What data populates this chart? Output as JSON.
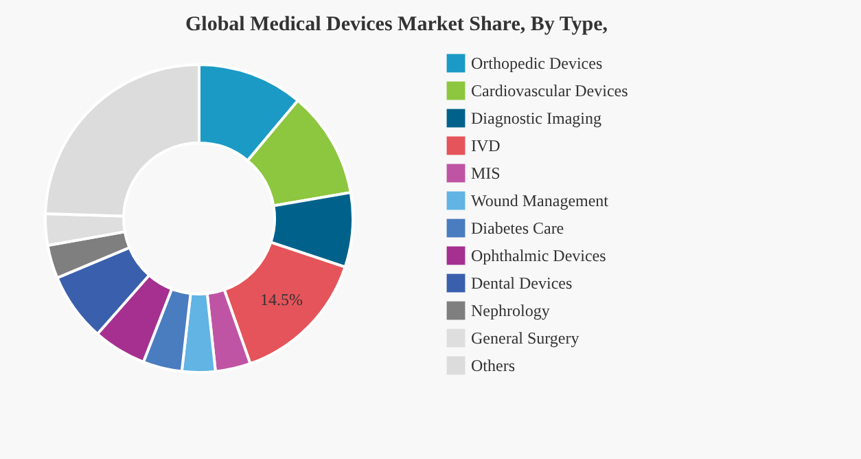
{
  "chart_data": {
    "type": "donut",
    "title": "Global Medical Devices Market Share, By Type,",
    "categories": [
      "Orthopedic Devices",
      "Cardiovascular Devices",
      "Diagnostic Imaging",
      "IVD",
      "MIS",
      "Wound Management",
      "Diabetes Care",
      "Ophthalmic Devices",
      "Dental Devices",
      "Nephrology",
      "General Surgery",
      "Others"
    ],
    "values": [
      11.1,
      11.2,
      7.8,
      14.5,
      3.7,
      3.5,
      4.1,
      5.6,
      7.2,
      3.5,
      3.3,
      24.5
    ],
    "colors": [
      "#1b9ac6",
      "#8dc63f",
      "#00628b",
      "#e5545a",
      "#c054a4",
      "#61b4e4",
      "#4a7cc0",
      "#a5308f",
      "#3a5fad",
      "#7f7f7f",
      "#dedede",
      "#dcdcdc"
    ],
    "value_labels": [
      null,
      null,
      null,
      "14.5%",
      null,
      null,
      null,
      null,
      null,
      null,
      null,
      null
    ],
    "legend": "right"
  }
}
